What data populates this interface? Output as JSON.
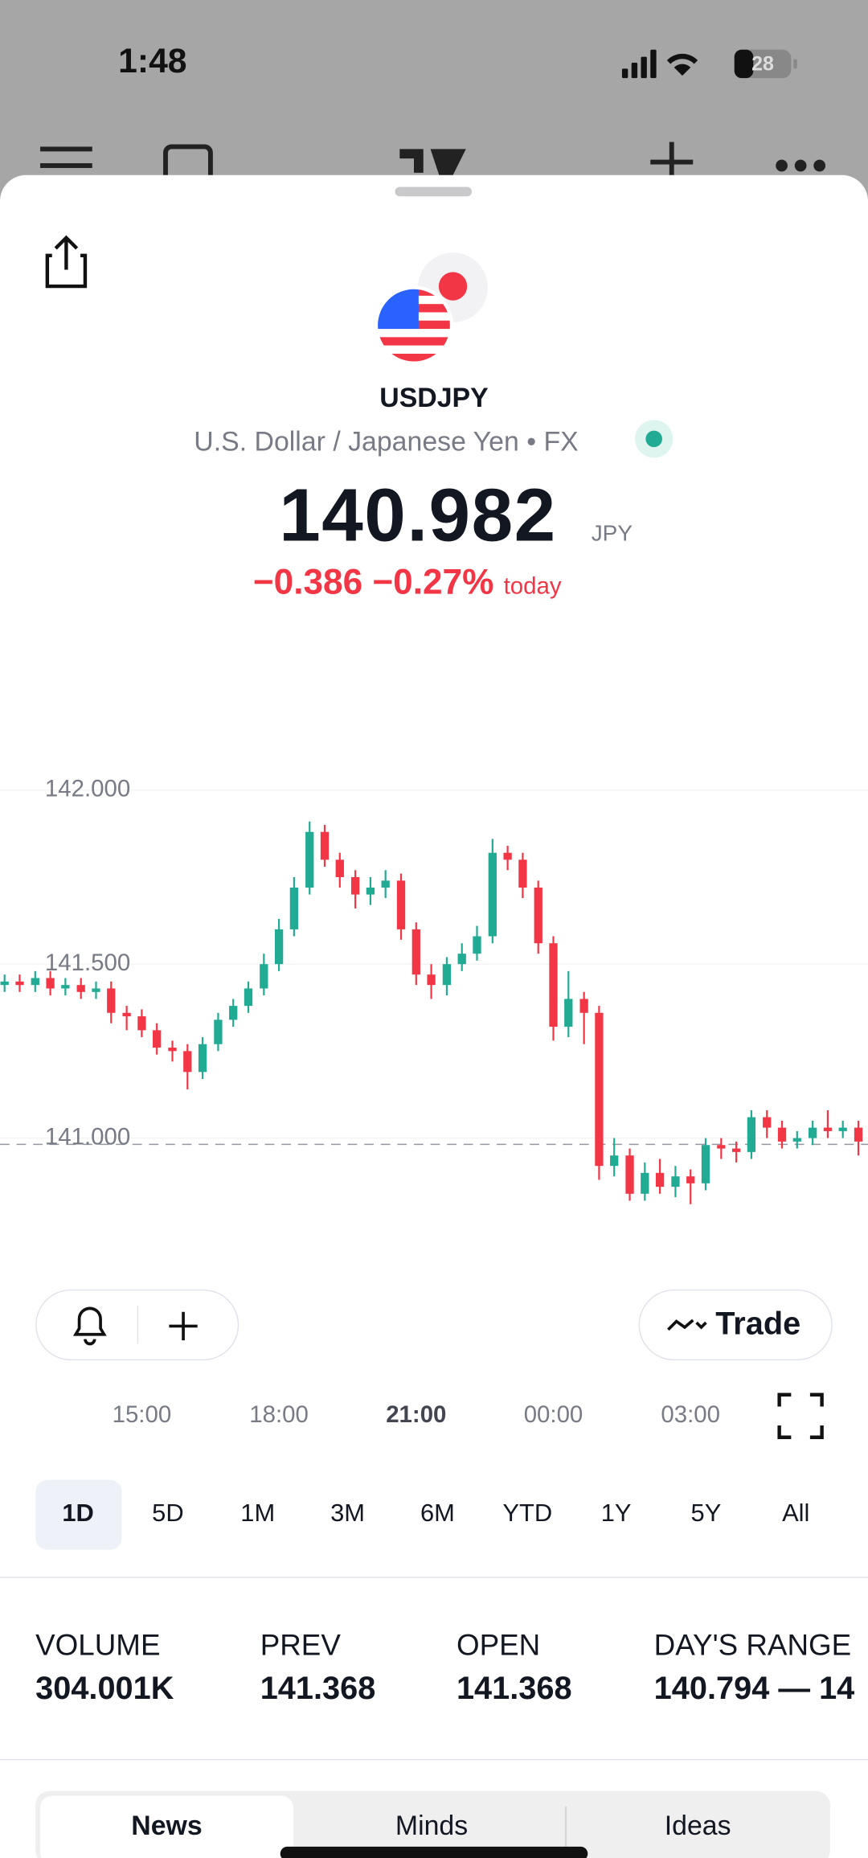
{
  "status_bar": {
    "time": "1:48",
    "battery": "28"
  },
  "header": {
    "symbol": "USDJPY",
    "description": "U.S. Dollar / Japanese Yen",
    "market": "FX",
    "price": 140.982,
    "currency": "JPY",
    "change": "−0.386",
    "change_percent": "−0.27%",
    "change_period": "today"
  },
  "chart_data": {
    "type": "candlestick",
    "x": [
      12,
      12.33,
      12.67,
      13,
      13.33,
      13.67,
      14,
      14.33,
      14.67,
      15,
      15.33,
      15.67,
      16,
      16.33,
      16.67,
      17,
      17.33,
      17.67,
      18,
      18.33,
      18.67,
      19,
      19.33,
      19.67,
      20,
      20.33,
      20.67,
      21,
      21.33,
      21.67,
      22,
      22.33,
      22.67,
      23,
      23.33,
      23.67,
      24,
      24.33,
      24.67,
      25,
      25.33,
      25.67,
      26,
      26.33,
      26.67,
      27,
      27.33,
      27.67,
      28,
      28.33,
      28.67,
      29,
      29.33,
      29.67,
      30,
      30.33,
      30.67
    ],
    "open": [
      141.44,
      141.45,
      141.44,
      141.46,
      141.43,
      141.44,
      141.42,
      141.43,
      141.36,
      141.35,
      141.31,
      141.26,
      141.25,
      141.19,
      141.27,
      141.34,
      141.38,
      141.43,
      141.5,
      141.6,
      141.72,
      141.88,
      141.8,
      141.75,
      141.7,
      141.72,
      141.74,
      141.6,
      141.47,
      141.44,
      141.5,
      141.53,
      141.58,
      141.82,
      141.8,
      141.72,
      141.56,
      141.32,
      141.4,
      141.36,
      140.92,
      140.95,
      140.84,
      140.9,
      140.86,
      140.89,
      140.87,
      140.98,
      140.97,
      140.96,
      141.06,
      141.03,
      140.99,
      141,
      141.03,
      141.02,
      141.03
    ],
    "high": [
      141.47,
      141.47,
      141.48,
      141.48,
      141.46,
      141.46,
      141.45,
      141.45,
      141.38,
      141.37,
      141.33,
      141.28,
      141.27,
      141.29,
      141.36,
      141.4,
      141.45,
      141.53,
      141.63,
      141.75,
      141.91,
      141.9,
      141.82,
      141.77,
      141.75,
      141.77,
      141.76,
      141.62,
      141.5,
      141.52,
      141.56,
      141.61,
      141.86,
      141.84,
      141.82,
      141.74,
      141.58,
      141.48,
      141.42,
      141.38,
      141,
      140.97,
      140.93,
      140.94,
      140.92,
      140.91,
      141,
      141,
      140.99,
      141.08,
      141.08,
      141.05,
      141.02,
      141.05,
      141.08,
      141.05,
      141.05
    ],
    "low": [
      141.42,
      141.42,
      141.42,
      141.41,
      141.41,
      141.4,
      141.4,
      141.33,
      141.31,
      141.29,
      141.24,
      141.22,
      141.14,
      141.17,
      141.25,
      141.32,
      141.36,
      141.41,
      141.48,
      141.58,
      141.7,
      141.78,
      141.72,
      141.66,
      141.67,
      141.69,
      141.57,
      141.44,
      141.4,
      141.41,
      141.48,
      141.51,
      141.56,
      141.77,
      141.69,
      141.53,
      141.28,
      141.29,
      141.27,
      140.88,
      140.89,
      140.82,
      140.82,
      140.84,
      140.83,
      140.81,
      140.85,
      140.94,
      140.93,
      140.94,
      141,
      140.97,
      140.97,
      140.98,
      141,
      141,
      140.95
    ],
    "close": [
      141.45,
      141.44,
      141.46,
      141.43,
      141.44,
      141.42,
      141.43,
      141.36,
      141.35,
      141.31,
      141.26,
      141.25,
      141.19,
      141.27,
      141.34,
      141.38,
      141.43,
      141.5,
      141.6,
      141.72,
      141.88,
      141.8,
      141.75,
      141.7,
      141.72,
      141.74,
      141.6,
      141.47,
      141.44,
      141.5,
      141.53,
      141.58,
      141.82,
      141.8,
      141.72,
      141.56,
      141.32,
      141.4,
      141.36,
      140.92,
      140.95,
      140.84,
      140.9,
      140.86,
      140.89,
      140.87,
      140.98,
      140.97,
      140.96,
      141.06,
      141.03,
      140.99,
      141,
      141.03,
      141.02,
      141.03,
      140.99
    ],
    "up_color": "#22ab94",
    "down_color": "#f23645",
    "xlim": [
      11.9,
      30.88
    ],
    "xticks": [
      {
        "value": 15,
        "label": "15:00"
      },
      {
        "value": 18,
        "label": "18:00"
      },
      {
        "value": 21,
        "label": "21:00"
      },
      {
        "value": 24,
        "label": "00:00"
      },
      {
        "value": 27,
        "label": "03:00"
      }
    ],
    "ylim": [
      140.667,
      142.367
    ],
    "yticks": [
      {
        "value": 141,
        "label": "141.000"
      },
      {
        "value": 141.5,
        "label": "141.500"
      },
      {
        "value": 142,
        "label": "142.000"
      }
    ]
  },
  "buttons": {
    "trade": "Trade"
  },
  "time_ranges": [
    "1D",
    "5D",
    "1M",
    "3M",
    "6M",
    "YTD",
    "1Y",
    "5Y",
    "All"
  ],
  "stats": [
    {
      "label": "VOLUME",
      "value": "304.001K"
    },
    {
      "label": "PREV",
      "value": "141.368"
    },
    {
      "label": "OPEN",
      "value": "141.368"
    },
    {
      "label": "DAY'S RANGE",
      "value": "140.794 — 14"
    }
  ],
  "tabs": [
    "News",
    "Minds",
    "Ideas"
  ]
}
